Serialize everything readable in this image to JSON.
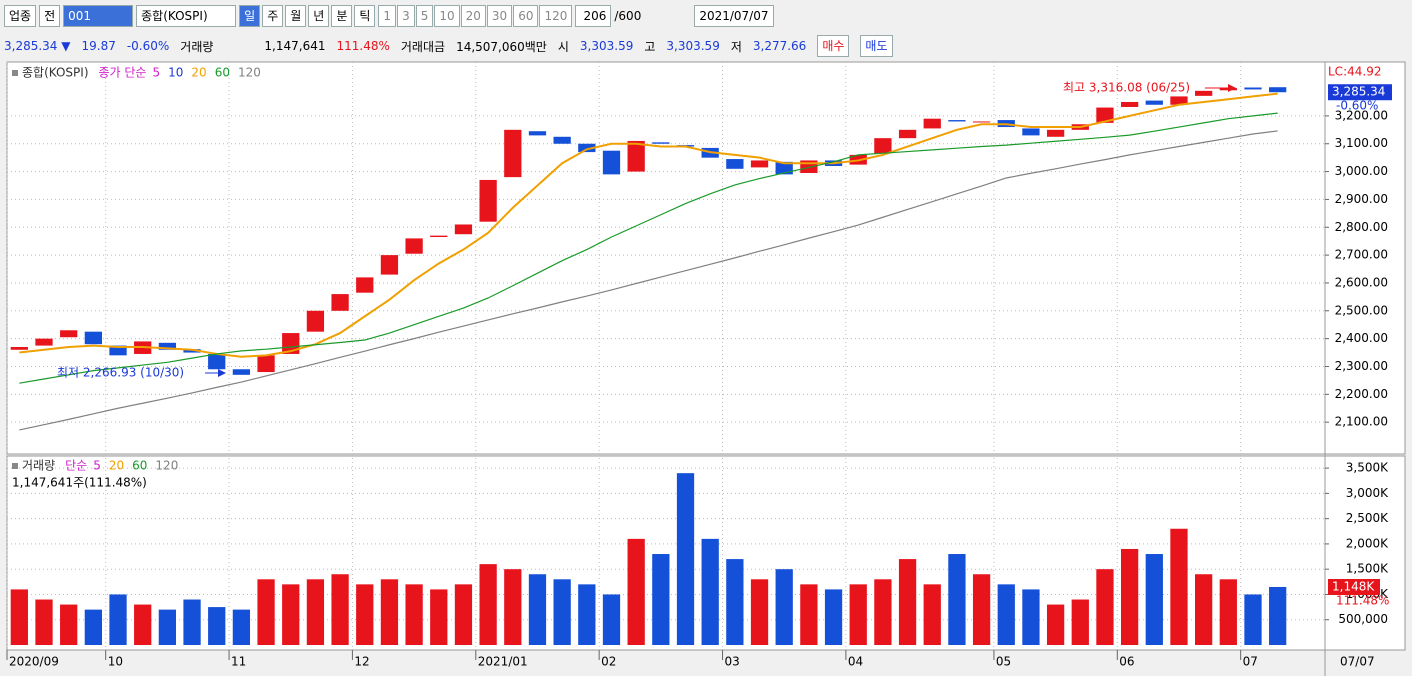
{
  "toolbar": {
    "sector": "업종",
    "all": "전",
    "code": "001",
    "name": "종합(KOSPI)",
    "periods": [
      "일",
      "주",
      "월",
      "년",
      "분",
      "틱"
    ],
    "minutes": [
      "1",
      "3",
      "5",
      "10",
      "20",
      "30",
      "60",
      "120"
    ],
    "count": "206",
    "max_count": "/600",
    "date": "2021/07/07"
  },
  "info_bar": {
    "price": "3,285.34 ▼",
    "change": "19.87",
    "change_pct": "-0.60%",
    "volume_label": "거래량",
    "volume": "1,147,641",
    "volume_ratio": "111.48%",
    "amount_label": "거래대금",
    "amount": "14,507,060백만",
    "open_label": "시",
    "open": "3,303.59",
    "high_label": "고",
    "high": "3,303.59",
    "low_label": "저",
    "low": "3,277.66",
    "buy": "매수",
    "sell": "매도"
  },
  "chart_data": [
    {
      "type": "candlestick",
      "title": "종합(KOSPI)",
      "legend_label": "종가 단순",
      "legend_items": [
        {
          "name": "5",
          "color": "#d020c8"
        },
        {
          "name": "10",
          "color": "#1a3ad8"
        },
        {
          "name": "20",
          "color": "#f0a000",
          "values": [
            2350,
            2360,
            2370,
            2375,
            2370,
            2370,
            2365,
            2360,
            2345,
            2335,
            2340,
            2355,
            2380,
            2420,
            2480,
            2540,
            2610,
            2670,
            2720,
            2780,
            2870,
            2950,
            3030,
            3080,
            3100,
            3100,
            3090,
            3090,
            3070,
            3060,
            3050,
            3030,
            3030,
            3030,
            3040,
            3060,
            3090,
            3120,
            3150,
            3170,
            3170,
            3160,
            3160,
            3160,
            3180,
            3200,
            3220,
            3240,
            3250,
            3260,
            3270,
            3280
          ]
        },
        {
          "name": "60",
          "color": "#1a9a2a",
          "values": [
            2240,
            2255,
            2270,
            2285,
            2295,
            2305,
            2315,
            2330,
            2345,
            2356,
            2362,
            2370,
            2378,
            2386,
            2395,
            2420,
            2450,
            2480,
            2510,
            2546,
            2590,
            2635,
            2680,
            2720,
            2765,
            2805,
            2845,
            2885,
            2920,
            2952,
            2975,
            2995,
            3015,
            3035,
            3060,
            3066,
            3072,
            3078,
            3084,
            3090,
            3095,
            3102,
            3109,
            3116,
            3123,
            3131,
            3145,
            3160,
            3175,
            3190,
            3200,
            3210
          ]
        },
        {
          "name": "120",
          "color": "#808080",
          "values": [
            2072,
            2091,
            2110,
            2130,
            2150,
            2168,
            2186,
            2205,
            2225,
            2244,
            2266,
            2288,
            2310,
            2333,
            2355,
            2378,
            2400,
            2423,
            2445,
            2467,
            2489,
            2510,
            2532,
            2553,
            2575,
            2598,
            2621,
            2644,
            2667,
            2690,
            2714,
            2737,
            2761,
            2784,
            2808,
            2836,
            2864,
            2892,
            2920,
            2948,
            2977,
            2994,
            3010,
            3027,
            3043,
            3060,
            3075,
            3090,
            3105,
            3120,
            3135,
            3146
          ]
        }
      ],
      "open": [
        2360,
        2375,
        2405,
        2425,
        2375,
        2345,
        2385,
        2362,
        2345,
        2290,
        2280,
        2345,
        2425,
        2500,
        2565,
        2630,
        2705,
        2765,
        2775,
        2820,
        2980,
        3145,
        3125,
        3100,
        3075,
        3000,
        3105,
        3095,
        3085,
        3045,
        3015,
        3035,
        2995,
        3040,
        3025,
        3065,
        3120,
        3155,
        3185,
        3178,
        3185,
        3155,
        3125,
        3150,
        3175,
        3232,
        3255,
        3240,
        3272,
        3292,
        3302,
        3303
      ],
      "close": [
        2370,
        2400,
        2430,
        2380,
        2340,
        2390,
        2360,
        2350,
        2290,
        2270,
        2340,
        2420,
        2500,
        2560,
        2620,
        2700,
        2760,
        2770,
        2810,
        2970,
        3150,
        3130,
        3100,
        3070,
        2990,
        3110,
        3100,
        3090,
        3050,
        3010,
        3040,
        2990,
        3040,
        3020,
        3060,
        3120,
        3150,
        3190,
        3180,
        3180,
        3160,
        3130,
        3150,
        3170,
        3230,
        3250,
        3240,
        3270,
        3290,
        3300,
        3295,
        3285
      ],
      "up_color": "#e8141c",
      "down_color": "#1450d8",
      "ylim": [
        2000,
        3390
      ],
      "yticks": [
        {
          "value": 2100,
          "label": "2,100.00"
        },
        {
          "value": 2200,
          "label": "2,200.00"
        },
        {
          "value": 2300,
          "label": "2,300.00"
        },
        {
          "value": 2400,
          "label": "2,400.00"
        },
        {
          "value": 2500,
          "label": "2,500.00"
        },
        {
          "value": 2600,
          "label": "2,600.00"
        },
        {
          "value": 2700,
          "label": "2,700.00"
        },
        {
          "value": 2800,
          "label": "2,800.00"
        },
        {
          "value": 2900,
          "label": "2,900.00"
        },
        {
          "value": 3000,
          "label": "3,000.00"
        },
        {
          "value": 3100,
          "label": "3,100.00"
        },
        {
          "value": 3200,
          "label": "3,200.00"
        }
      ],
      "lc_label": "LC:44.92",
      "current_label": "3,285.34",
      "current_pct": "-0.60%",
      "max_annotation": "최고 3,316.08 (06/25)",
      "min_annotation": "최저 2,266.93 (10/30)"
    },
    {
      "type": "bar",
      "title": "거래량",
      "legend_label": "단순",
      "legend_items": [
        {
          "name": "5",
          "color": "#d020c8"
        },
        {
          "name": "20",
          "color": "#f0a000"
        },
        {
          "name": "60",
          "color": "#1a9a2a"
        },
        {
          "name": "120",
          "color": "#808080"
        }
      ],
      "subtitle": "1,147,641주(111.48%)",
      "values": [
        1100000,
        900000,
        800000,
        700000,
        1000000,
        800000,
        700000,
        900000,
        750000,
        700000,
        1300000,
        1200000,
        1300000,
        1400000,
        1200000,
        1300000,
        1200000,
        1100000,
        1200000,
        1600000,
        1500000,
        1400000,
        1300000,
        1200000,
        1000000,
        2100000,
        1800000,
        3400000,
        2100000,
        1700000,
        1300000,
        1500000,
        1200000,
        1100000,
        1200000,
        1300000,
        1700000,
        1200000,
        1800000,
        1400000,
        1200000,
        1100000,
        800000,
        900000,
        1500000,
        1900000,
        1800000,
        2300000,
        1400000,
        1300000,
        1000000,
        1147641
      ],
      "ylim": [
        0,
        3700000
      ],
      "yticks": [
        {
          "value": 500000,
          "label": "500,000"
        },
        {
          "value": 1000000,
          "label": "1,000K"
        },
        {
          "value": 1500000,
          "label": "1,500K"
        },
        {
          "value": 2000000,
          "label": "2,000K"
        },
        {
          "value": 2500000,
          "label": "2,500K"
        },
        {
          "value": 3000000,
          "label": "3,000K"
        },
        {
          "value": 3500000,
          "label": "3,500K"
        }
      ],
      "current_label": "1,148K",
      "current_pct": "111.48%",
      "categories": [
        "2020/09",
        null,
        null,
        null,
        "10",
        null,
        null,
        null,
        null,
        "11",
        null,
        null,
        null,
        null,
        "12",
        null,
        null,
        null,
        null,
        "2021/01",
        null,
        null,
        null,
        null,
        "02",
        null,
        null,
        null,
        null,
        "03",
        null,
        null,
        null,
        null,
        "04",
        null,
        null,
        null,
        null,
        null,
        "05",
        null,
        null,
        null,
        null,
        "06",
        null,
        null,
        null,
        null,
        "07",
        null
      ],
      "last_date": "07/07"
    }
  ]
}
